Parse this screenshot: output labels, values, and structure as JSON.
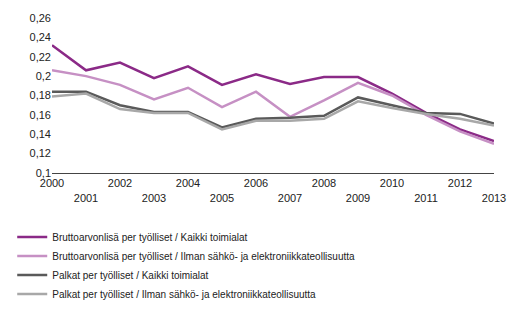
{
  "chart_data": {
    "type": "line",
    "x": [
      2000,
      2001,
      2002,
      2003,
      2004,
      2005,
      2006,
      2007,
      2008,
      2009,
      2010,
      2011,
      2012,
      2013
    ],
    "series": [
      {
        "name": "Bruttoarvonlisä per työlliset / Kaikki toimialat",
        "color": "#8b2a87",
        "values": [
          0.232,
          0.206,
          0.214,
          0.198,
          0.21,
          0.191,
          0.202,
          0.192,
          0.199,
          0.199,
          0.182,
          0.162,
          0.145,
          0.133
        ]
      },
      {
        "name": "Bruttoarvonlisä per työlliset / Ilman sähkö- ja elektroniikkateollisuutta",
        "color": "#c690c4",
        "values": [
          0.206,
          0.2,
          0.191,
          0.176,
          0.188,
          0.168,
          0.184,
          0.158,
          0.175,
          0.193,
          0.18,
          0.16,
          0.143,
          0.13
        ]
      },
      {
        "name": "Palkat per työlliset / Kaikki toimialat",
        "color": "#5a5a5a",
        "values": [
          0.184,
          0.184,
          0.17,
          0.163,
          0.163,
          0.147,
          0.156,
          0.157,
          0.159,
          0.178,
          0.17,
          0.162,
          0.161,
          0.151
        ]
      },
      {
        "name": "Palkat per työlliset / Ilman sähkö- ja elektroniikkateollisuutta",
        "color": "#a8a8a8",
        "values": [
          0.179,
          0.182,
          0.166,
          0.162,
          0.162,
          0.145,
          0.154,
          0.154,
          0.156,
          0.174,
          0.167,
          0.161,
          0.156,
          0.149
        ]
      }
    ],
    "xlim": [
      2000,
      2013
    ],
    "xticks": [
      2000,
      2001,
      2002,
      2003,
      2004,
      2005,
      2006,
      2007,
      2008,
      2009,
      2010,
      2011,
      2012,
      2013
    ],
    "ylim": [
      0.1,
      0.26
    ],
    "yticks": [
      {
        "value": 0.1,
        "label": "0,1"
      },
      {
        "value": 0.12,
        "label": "0,12"
      },
      {
        "value": 0.14,
        "label": "0,14"
      },
      {
        "value": 0.16,
        "label": "0,16"
      },
      {
        "value": 0.18,
        "label": "0,18"
      },
      {
        "value": 0.2,
        "label": "0,2"
      },
      {
        "value": 0.22,
        "label": "0,22"
      },
      {
        "value": 0.24,
        "label": "0,24"
      },
      {
        "value": 0.26,
        "label": "0,26"
      }
    ],
    "grid": false,
    "legend": "bottom"
  }
}
